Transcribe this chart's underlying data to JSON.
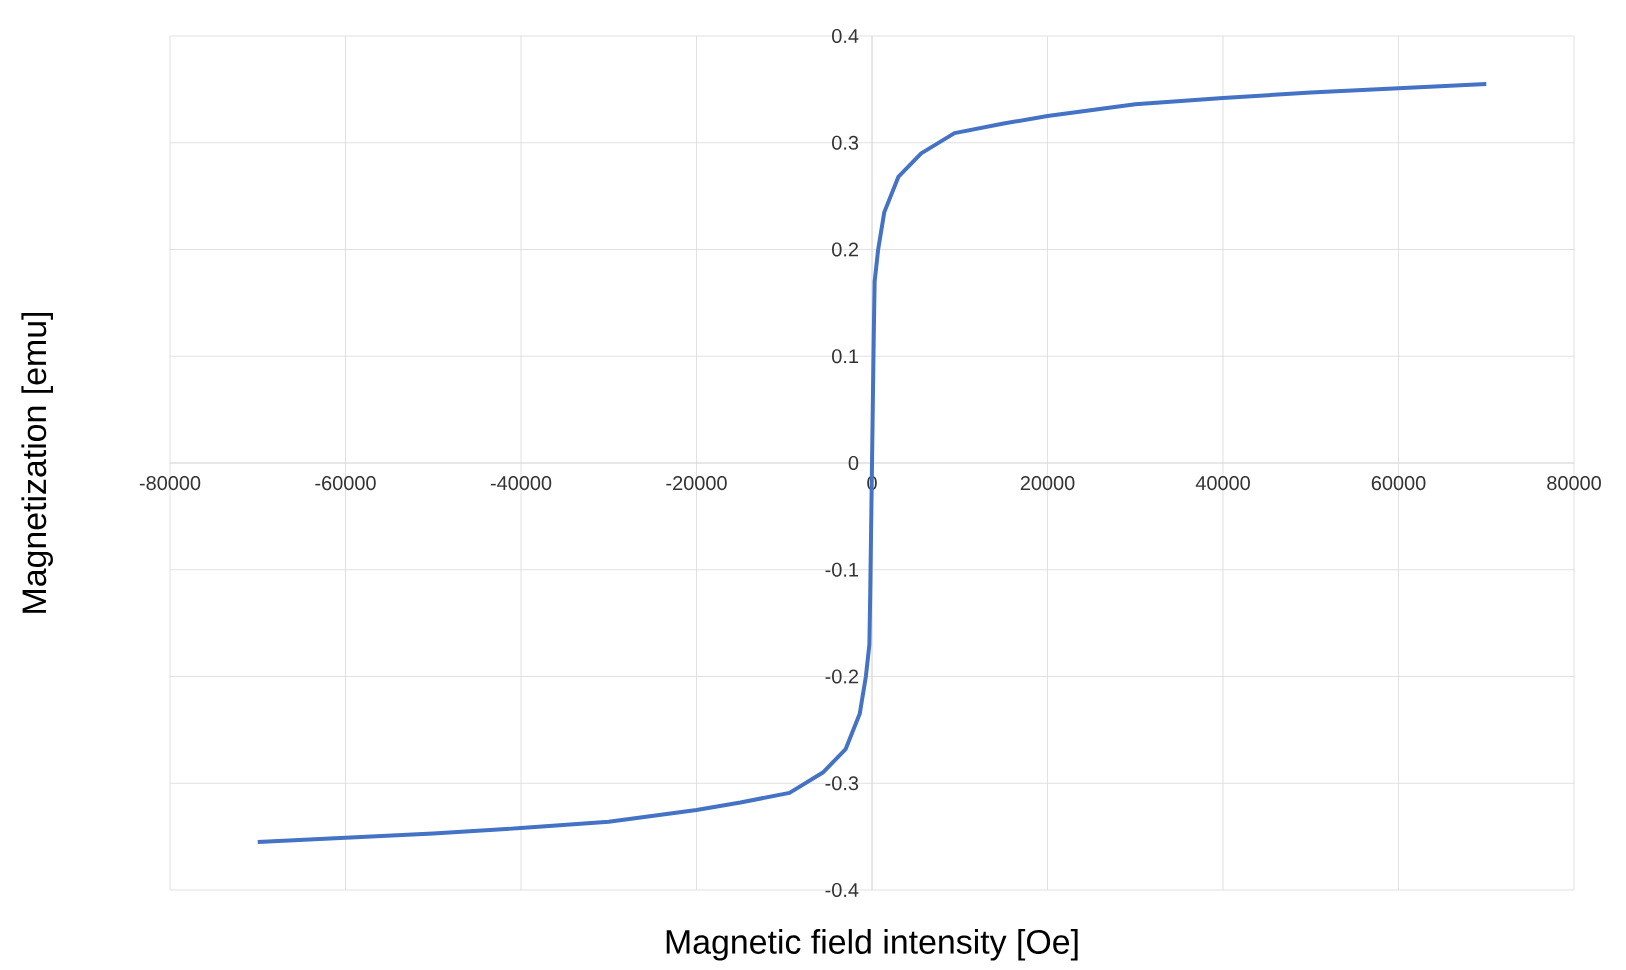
{
  "chart_data": {
    "type": "line",
    "xlabel": "Magnetic field intensity  [Oe]",
    "ylabel": "Magnetization [emu]",
    "x": [
      -70000,
      -60000,
      -50000,
      -40000,
      -30000,
      -20000,
      -15000,
      -9400,
      -5600,
      -3000,
      -1400,
      -700,
      -300,
      -200,
      -100,
      0,
      100,
      200,
      300,
      700,
      1400,
      3000,
      5600,
      9400,
      15000,
      20000,
      30000,
      40000,
      50000,
      60000,
      70000
    ],
    "series": [
      {
        "color": "#4472c4",
        "values": [
          -0.355,
          -0.351,
          -0.347,
          -0.342,
          -0.336,
          -0.325,
          -0.318,
          -0.309,
          -0.29,
          -0.268,
          -0.235,
          -0.2,
          -0.17,
          -0.12,
          -0.06,
          0,
          0.06,
          0.12,
          0.17,
          0.2,
          0.235,
          0.268,
          0.29,
          0.309,
          0.318,
          0.325,
          0.336,
          0.342,
          0.347,
          0.351,
          0.355
        ]
      }
    ],
    "xlim": [
      -80000,
      80000
    ],
    "xticks": [
      -80000,
      -60000,
      -40000,
      -20000,
      0,
      20000,
      40000,
      60000,
      80000
    ],
    "ylim": [
      -0.4,
      0.4
    ],
    "yticks": [
      -0.4,
      -0.3,
      -0.2,
      -0.1,
      0,
      0.1,
      0.2,
      0.3,
      0.4
    ],
    "grid": true,
    "marker": "none",
    "line_style": "solid"
  }
}
